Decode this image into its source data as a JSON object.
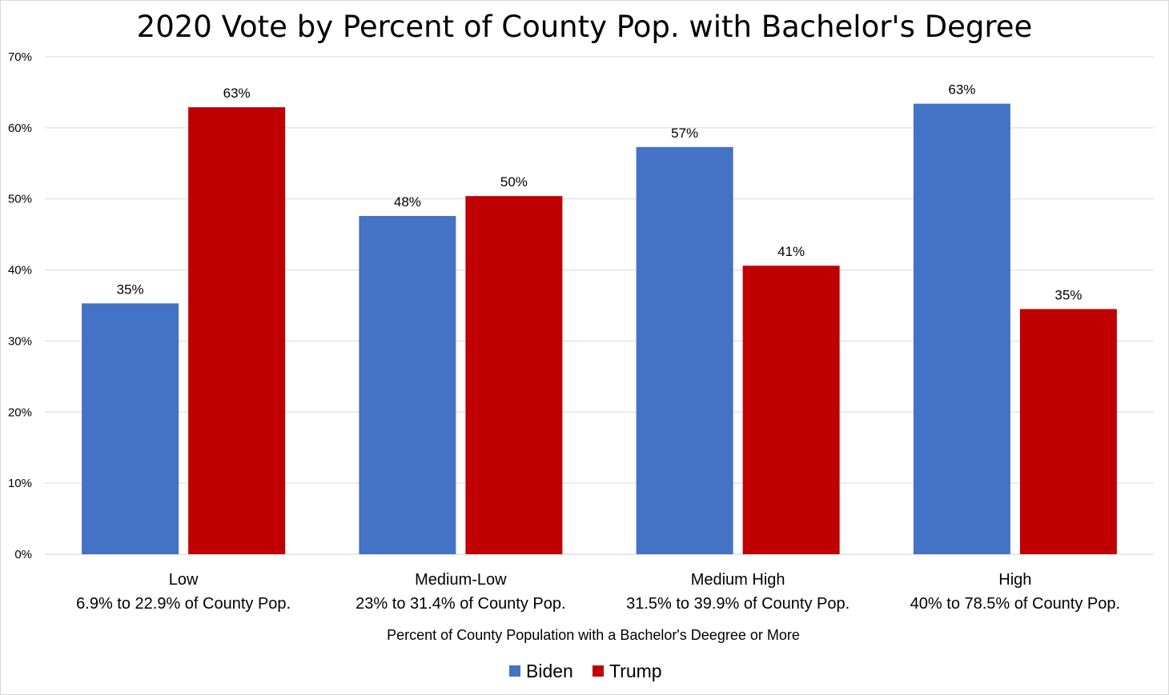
{
  "chart_data": {
    "type": "bar",
    "title": "2020 Vote by Percent of County Pop. with Bachelor's Degree",
    "xlabel": "Percent of County Population with a Bachelor's Deegree  or More",
    "ylabel": "",
    "ylim": [
      0,
      70
    ],
    "yticks": [
      0,
      10,
      20,
      30,
      40,
      50,
      60,
      70
    ],
    "ytick_suffix": "%",
    "grid": true,
    "legend_position": "bottom",
    "categories": [
      {
        "line1": "Low",
        "line2": "6.9% to 22.9% of County Pop."
      },
      {
        "line1": "Medium-Low",
        "line2": "23% to 31.4% of County Pop."
      },
      {
        "line1": "Medium High",
        "line2": "31.5% to 39.9% of County Pop."
      },
      {
        "line1": "High",
        "line2": "40% to 78.5% of County Pop."
      }
    ],
    "series": [
      {
        "name": "Biden",
        "color": "#4472C4",
        "values": [
          35.3,
          47.6,
          57.3,
          63.4
        ],
        "labels": [
          "35%",
          "48%",
          "57%",
          "63%"
        ]
      },
      {
        "name": "Trump",
        "color": "#C00000",
        "values": [
          62.9,
          50.4,
          40.6,
          34.5
        ],
        "labels": [
          "63%",
          "50%",
          "41%",
          "35%"
        ]
      }
    ]
  }
}
